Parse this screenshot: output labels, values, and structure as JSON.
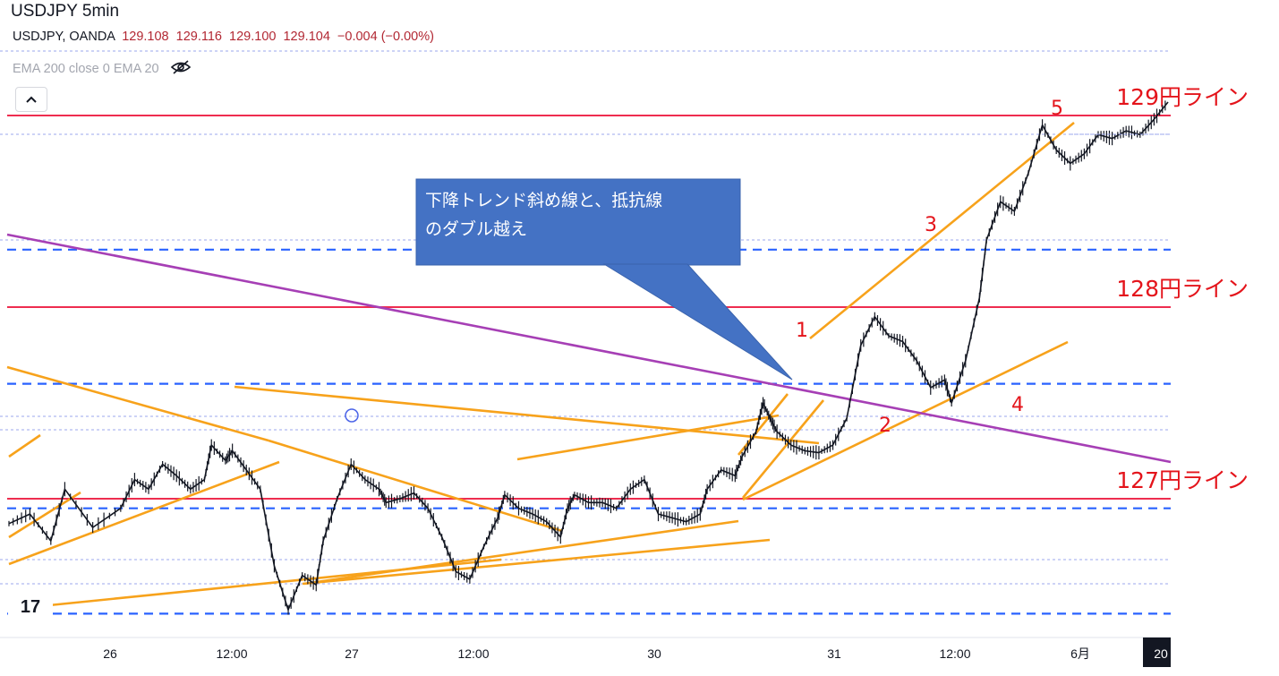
{
  "header": {
    "title": "USDJPY 5min",
    "symbol": "USDJPY, OANDA",
    "open": "129.108",
    "high": "129.116",
    "low": "129.100",
    "close": "129.104",
    "change": "−0.004 (−0.00%)",
    "indicators": "EMA 200 close 0 EMA 20"
  },
  "callout": {
    "line1": "下降トレンド斜め線と、抵抗線",
    "line2": "のダブル越え"
  },
  "logo_text": "17",
  "chart_data": {
    "type": "line",
    "title": "USDJPY 5min",
    "x_tick_labels": [
      "26",
      "12:00",
      "27",
      "12:00",
      "30",
      "31",
      "12:00",
      "6月",
      "20"
    ],
    "y_range": [
      126.2,
      129.2
    ],
    "grid": false,
    "series": [
      {
        "name": "USDJPY",
        "points": [
          [
            0,
            126.87
          ],
          [
            1.5,
            126.92
          ],
          [
            3,
            126.78
          ],
          [
            4,
            127.05
          ],
          [
            6,
            126.85
          ],
          [
            8,
            126.95
          ],
          [
            9,
            127.1
          ],
          [
            10,
            127.05
          ],
          [
            11,
            127.18
          ],
          [
            12,
            127.12
          ],
          [
            13,
            127.05
          ],
          [
            14,
            127.1
          ],
          [
            14.5,
            127.28
          ],
          [
            15.5,
            127.2
          ],
          [
            16,
            127.25
          ],
          [
            17,
            127.15
          ],
          [
            18,
            127.05
          ],
          [
            19,
            126.65
          ],
          [
            20,
            126.42
          ],
          [
            21,
            126.6
          ],
          [
            22,
            126.55
          ],
          [
            22.5,
            126.78
          ],
          [
            23.5,
            127.0
          ],
          [
            24.5,
            127.18
          ],
          [
            25.5,
            127.1
          ],
          [
            26.5,
            127.05
          ],
          [
            27,
            126.98
          ],
          [
            28,
            127.0
          ],
          [
            29,
            127.03
          ],
          [
            30,
            126.95
          ],
          [
            31,
            126.8
          ],
          [
            32,
            126.62
          ],
          [
            33,
            126.58
          ],
          [
            34,
            126.75
          ],
          [
            35,
            126.9
          ],
          [
            35.5,
            127.02
          ],
          [
            36.5,
            126.95
          ],
          [
            37.5,
            126.92
          ],
          [
            38.5,
            126.88
          ],
          [
            39.5,
            126.8
          ],
          [
            40,
            126.95
          ],
          [
            40.5,
            127.02
          ],
          [
            41.5,
            126.98
          ],
          [
            42.5,
            126.98
          ],
          [
            43.5,
            126.95
          ],
          [
            44.5,
            127.05
          ],
          [
            45.5,
            127.1
          ],
          [
            46.5,
            126.92
          ],
          [
            47.5,
            126.9
          ],
          [
            48.5,
            126.88
          ],
          [
            49.5,
            126.92
          ],
          [
            50,
            127.05
          ],
          [
            51,
            127.15
          ],
          [
            52,
            127.12
          ],
          [
            52.5,
            127.22
          ],
          [
            53.5,
            127.35
          ],
          [
            54,
            127.5
          ],
          [
            54.5,
            127.42
          ],
          [
            55,
            127.35
          ],
          [
            56,
            127.28
          ],
          [
            57,
            127.25
          ],
          [
            58,
            127.24
          ],
          [
            59,
            127.28
          ],
          [
            60,
            127.42
          ],
          [
            61,
            127.8
          ],
          [
            62,
            127.95
          ],
          [
            63,
            127.85
          ],
          [
            64,
            127.82
          ],
          [
            65,
            127.72
          ],
          [
            66,
            127.58
          ],
          [
            67,
            127.62
          ],
          [
            67.5,
            127.5
          ],
          [
            68.5,
            127.72
          ],
          [
            69.5,
            128.05
          ],
          [
            70,
            128.35
          ],
          [
            71,
            128.55
          ],
          [
            72,
            128.5
          ],
          [
            73,
            128.7
          ],
          [
            74,
            128.95
          ],
          [
            75,
            128.82
          ],
          [
            76,
            128.75
          ],
          [
            77,
            128.8
          ],
          [
            78,
            128.9
          ],
          [
            79,
            128.88
          ],
          [
            80,
            128.92
          ],
          [
            81,
            128.9
          ],
          [
            82,
            128.98
          ],
          [
            83,
            129.07
          ]
        ]
      }
    ],
    "levels": [
      {
        "value": 129.0,
        "label": "129円ライン",
        "style": "solid",
        "color": "#ee2d4f"
      },
      {
        "value": 128.0,
        "label": "128円ライン",
        "style": "solid",
        "color": "#ee2d4f"
      },
      {
        "value": 127.0,
        "label": "127円ライン",
        "style": "solid",
        "color": "#ee2d4f"
      },
      {
        "value": 128.3,
        "style": "dashed",
        "color": "#2962ff"
      },
      {
        "value": 127.6,
        "style": "dashed",
        "color": "#2962ff"
      },
      {
        "value": 126.95,
        "style": "dashed",
        "color": "#2962ff"
      },
      {
        "value": 126.4,
        "style": "dashed",
        "color": "#2962ff"
      }
    ],
    "wave_labels": [
      "1",
      "2",
      "3",
      "4",
      "5"
    ],
    "colors": {
      "level": "#ee2d4f",
      "dashed": "#2962ff",
      "trendline": "#f7a21b",
      "downtrend": "#a63fb5",
      "callout": "#4472c4",
      "candles": "#131722",
      "wave_label": "#e4141b"
    }
  }
}
